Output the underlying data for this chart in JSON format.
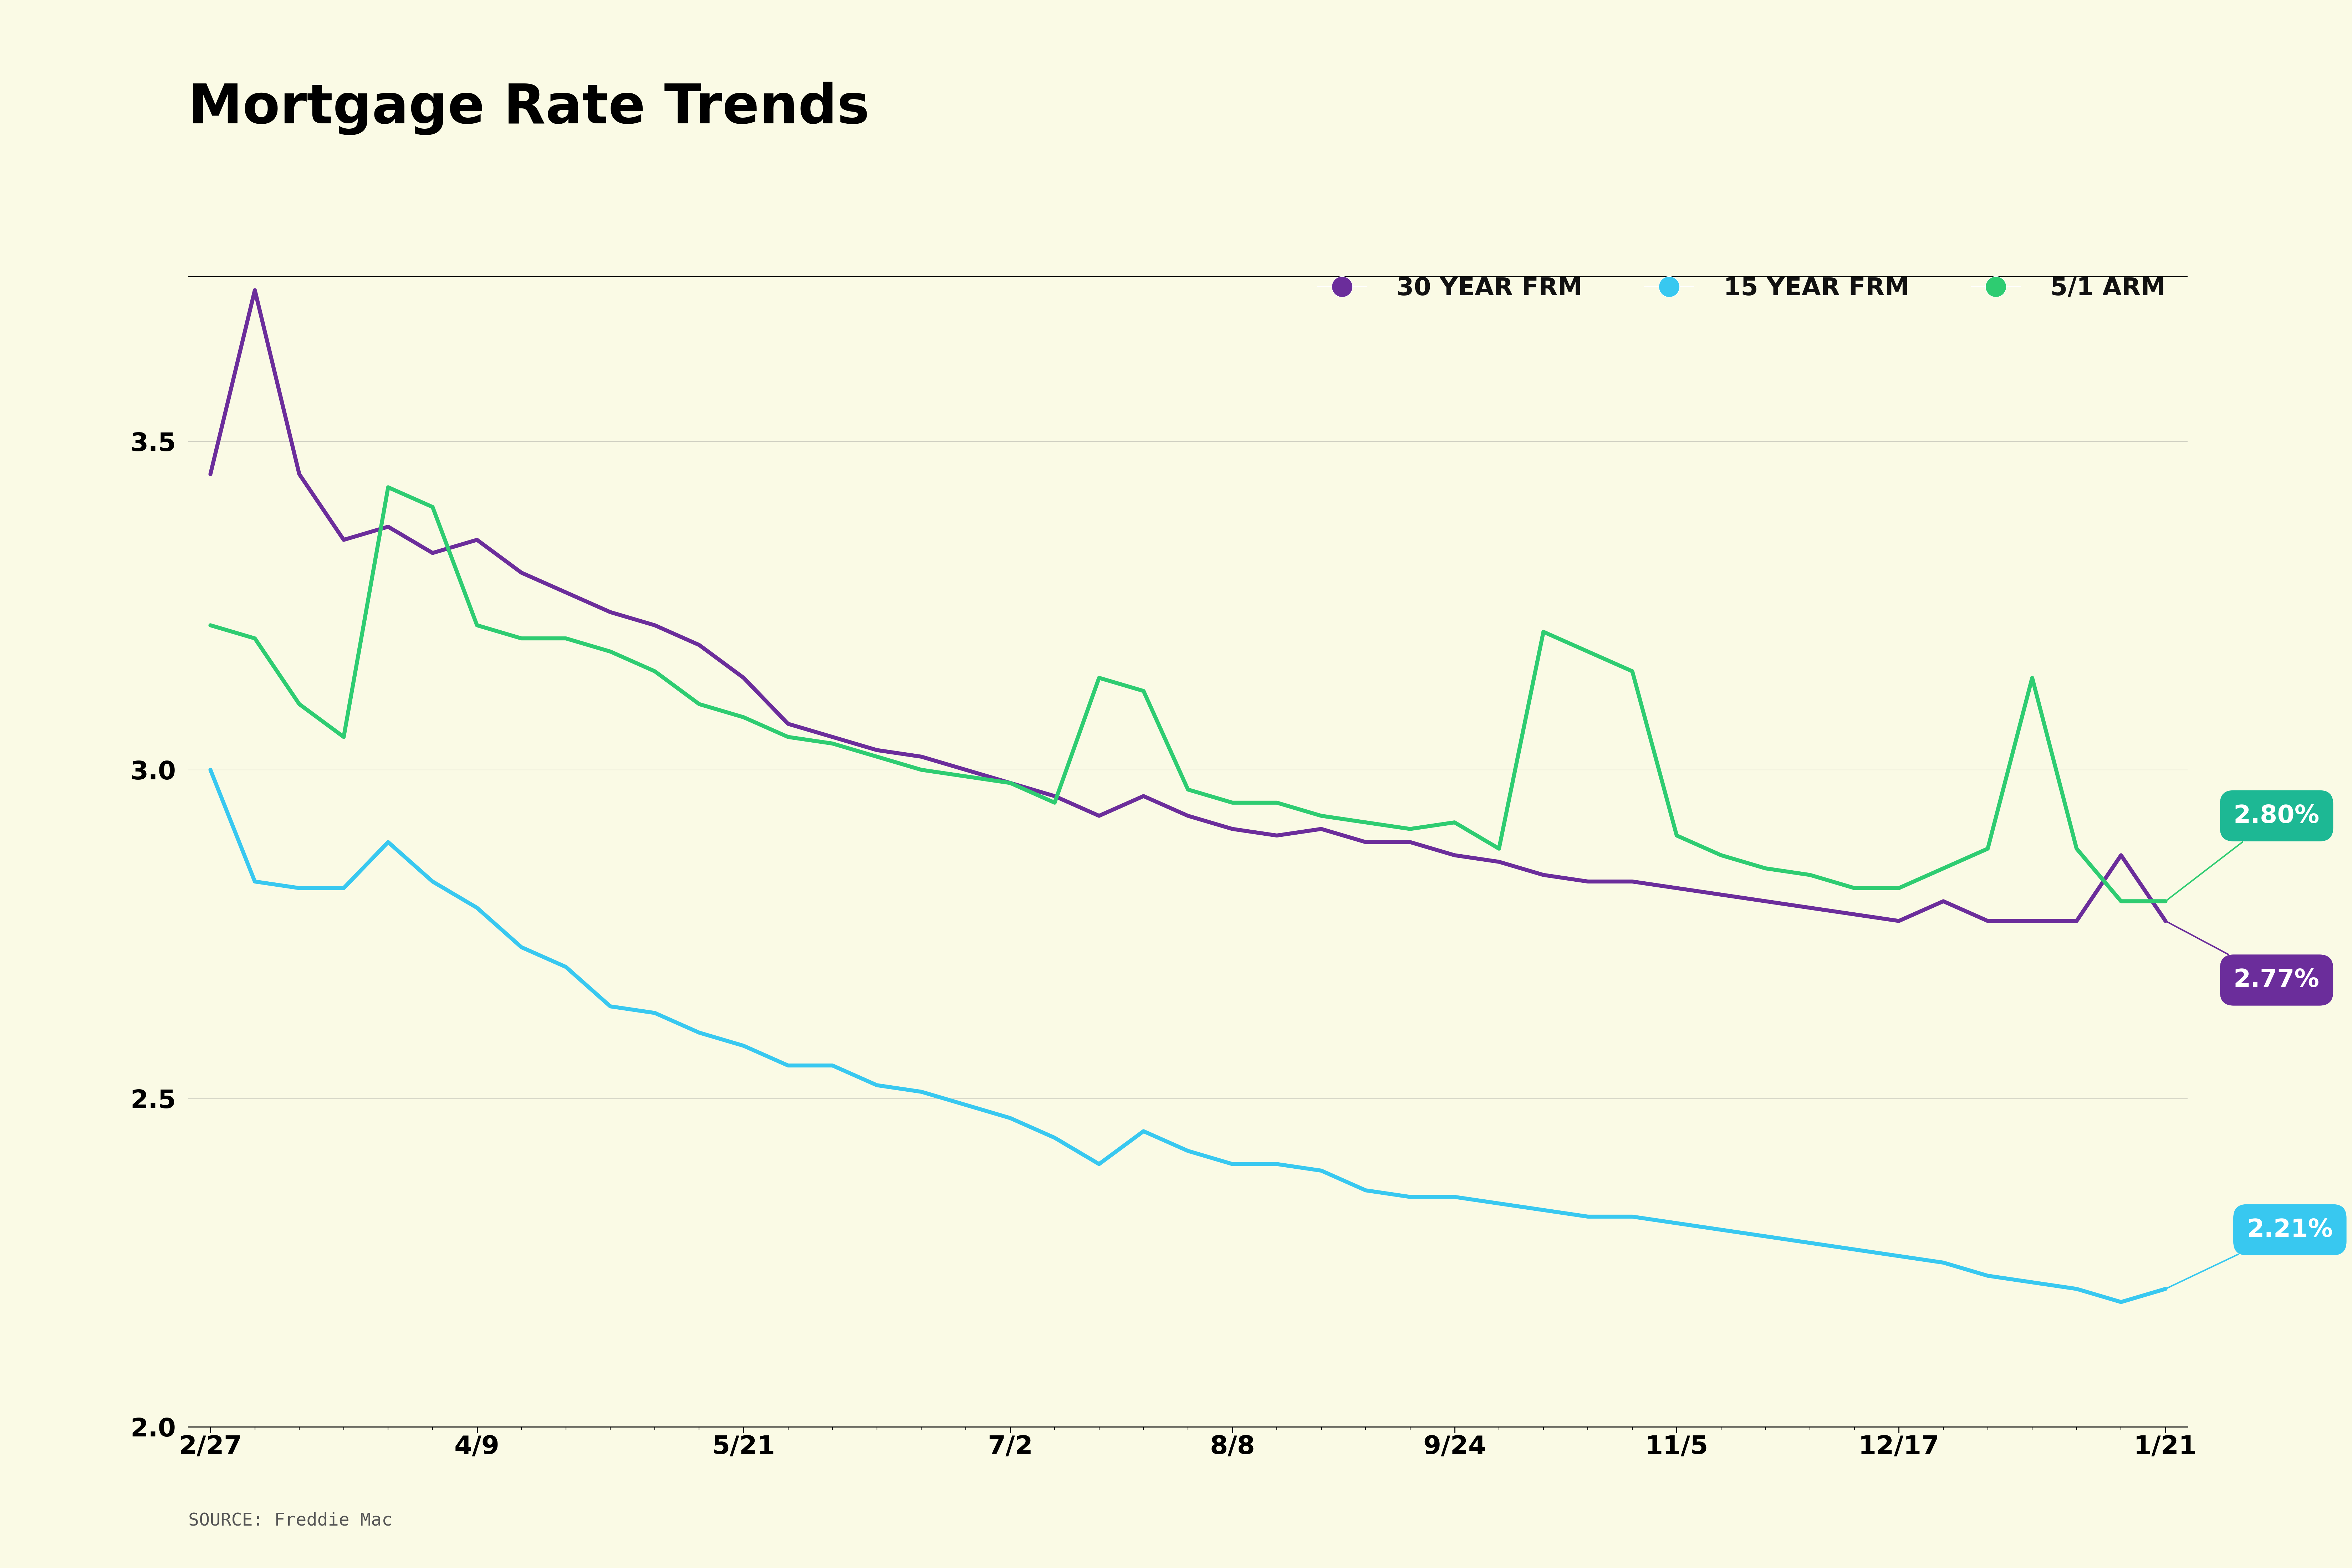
{
  "title": "Mortgage Rate Trends",
  "source": "SOURCE: Freddie Mac",
  "background_color": "#FAFAE5",
  "title_color": "#000000",
  "title_fontsize": 110,
  "ylim": [
    2.0,
    3.75
  ],
  "yticks": [
    2.0,
    2.5,
    3.0,
    3.5
  ],
  "xlabel_dates": [
    "2/27",
    "4/9",
    "5/21",
    "7/2",
    "8/8",
    "9/24",
    "11/5",
    "12/17",
    "1/21"
  ],
  "date_x_positions": [
    0,
    6,
    12,
    18,
    23,
    28,
    33,
    38,
    44
  ],
  "series_30yr": {
    "label": "30 YEAR FRM",
    "color": "#6B2D9B",
    "end_label": "2.77%",
    "values": [
      3.45,
      3.73,
      3.45,
      3.35,
      3.37,
      3.33,
      3.35,
      3.3,
      3.27,
      3.24,
      3.22,
      3.19,
      3.14,
      3.07,
      3.05,
      3.03,
      3.02,
      3.0,
      2.98,
      2.96,
      2.93,
      2.96,
      2.93,
      2.91,
      2.9,
      2.91,
      2.89,
      2.89,
      2.87,
      2.86,
      2.84,
      2.83,
      2.83,
      2.82,
      2.81,
      2.8,
      2.79,
      2.78,
      2.77,
      2.8,
      2.77,
      2.77,
      2.77,
      2.87,
      2.77
    ]
  },
  "series_15yr": {
    "label": "15 YEAR FRM",
    "color": "#38C8F0",
    "end_label": "2.21%",
    "values": [
      3.0,
      2.83,
      2.82,
      2.82,
      2.89,
      2.83,
      2.79,
      2.73,
      2.7,
      2.64,
      2.63,
      2.6,
      2.58,
      2.55,
      2.55,
      2.52,
      2.51,
      2.49,
      2.47,
      2.44,
      2.4,
      2.45,
      2.42,
      2.4,
      2.4,
      2.39,
      2.36,
      2.35,
      2.35,
      2.34,
      2.33,
      2.32,
      2.32,
      2.31,
      2.3,
      2.29,
      2.28,
      2.27,
      2.26,
      2.25,
      2.23,
      2.22,
      2.21,
      2.19,
      2.21
    ]
  },
  "series_arm": {
    "label": "5/1 ARM",
    "color": "#2ECC71",
    "end_label": "2.80%",
    "values": [
      3.22,
      3.2,
      3.1,
      3.05,
      3.43,
      3.4,
      3.22,
      3.2,
      3.2,
      3.18,
      3.15,
      3.1,
      3.08,
      3.05,
      3.04,
      3.02,
      3.0,
      2.99,
      2.98,
      2.95,
      3.14,
      3.12,
      2.97,
      2.95,
      2.95,
      2.93,
      2.92,
      2.91,
      2.92,
      2.88,
      3.21,
      3.18,
      3.15,
      2.9,
      2.87,
      2.85,
      2.84,
      2.82,
      2.82,
      2.85,
      2.88,
      3.14,
      2.88,
      2.8,
      2.8
    ]
  },
  "n_points": 45,
  "line_width": 8
}
